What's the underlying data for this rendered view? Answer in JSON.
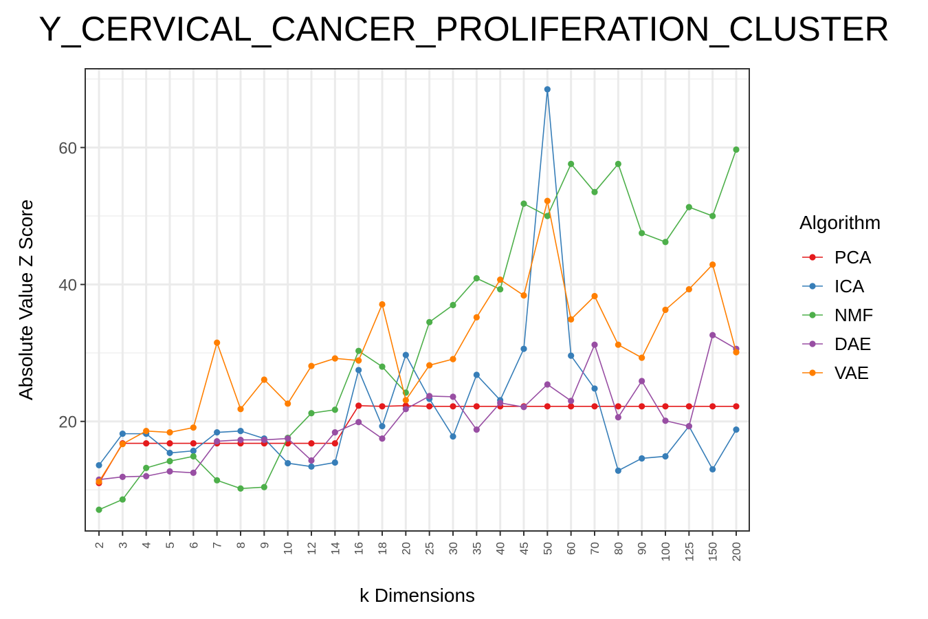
{
  "chart_data": {
    "type": "line",
    "title": "Y_CERVICAL_CANCER_PROLIFERATION_CLUSTER",
    "xlabel": "k Dimensions",
    "ylabel": "Absolute Value Z Score",
    "categories": [
      "2",
      "3",
      "4",
      "5",
      "6",
      "7",
      "8",
      "9",
      "10",
      "12",
      "14",
      "16",
      "18",
      "20",
      "25",
      "30",
      "35",
      "40",
      "45",
      "50",
      "60",
      "70",
      "80",
      "90",
      "100",
      "125",
      "150",
      "200"
    ],
    "ylim": [
      4,
      71.5
    ],
    "yticks": [
      20,
      40,
      60
    ],
    "grid": true,
    "legend": {
      "title": "Algorithm",
      "position": "right"
    },
    "series": [
      {
        "name": "PCA",
        "color": "#e41a1c",
        "values": [
          11.0,
          16.8,
          16.8,
          16.8,
          16.8,
          16.8,
          16.8,
          16.8,
          16.8,
          16.8,
          16.8,
          22.3,
          22.2,
          22.3,
          22.2,
          22.2,
          22.2,
          22.2,
          22.2,
          22.2,
          22.2,
          22.2,
          22.2,
          22.2,
          22.2,
          22.2,
          22.2,
          22.2
        ]
      },
      {
        "name": "ICA",
        "color": "#377eb8",
        "values": [
          13.6,
          18.2,
          18.2,
          15.4,
          15.7,
          18.4,
          18.6,
          17.5,
          13.9,
          13.4,
          14.0,
          27.5,
          19.3,
          29.7,
          23.3,
          17.8,
          26.8,
          23.1,
          30.6,
          68.5,
          29.6,
          24.8,
          12.8,
          14.6,
          14.9,
          19.3,
          13.0,
          18.8
        ]
      },
      {
        "name": "NMF",
        "color": "#4daf4a",
        "values": [
          7.1,
          8.6,
          13.2,
          14.2,
          14.9,
          11.4,
          10.2,
          10.4,
          17.6,
          21.2,
          21.7,
          30.3,
          28.0,
          24.2,
          34.5,
          37.0,
          40.9,
          39.3,
          51.8,
          50.0,
          57.6,
          53.5,
          57.6,
          47.5,
          46.2,
          51.3,
          50.0,
          59.7
        ]
      },
      {
        "name": "DAE",
        "color": "#984ea3",
        "values": [
          11.5,
          11.9,
          12.0,
          12.7,
          12.5,
          17.1,
          17.3,
          17.3,
          17.5,
          14.3,
          18.4,
          19.9,
          17.5,
          21.8,
          23.7,
          23.6,
          18.8,
          22.7,
          22.1,
          25.4,
          23.0,
          31.2,
          20.6,
          25.9,
          20.1,
          19.3,
          32.6,
          30.6
        ]
      },
      {
        "name": "VAE",
        "color": "#ff7f00",
        "values": [
          11.2,
          16.7,
          18.6,
          18.4,
          19.1,
          31.5,
          21.8,
          26.1,
          22.6,
          28.1,
          29.2,
          28.9,
          37.1,
          23.1,
          28.2,
          29.1,
          35.2,
          40.7,
          38.4,
          52.2,
          34.9,
          38.3,
          31.2,
          29.3,
          36.3,
          39.3,
          42.9,
          30.1
        ]
      }
    ]
  }
}
